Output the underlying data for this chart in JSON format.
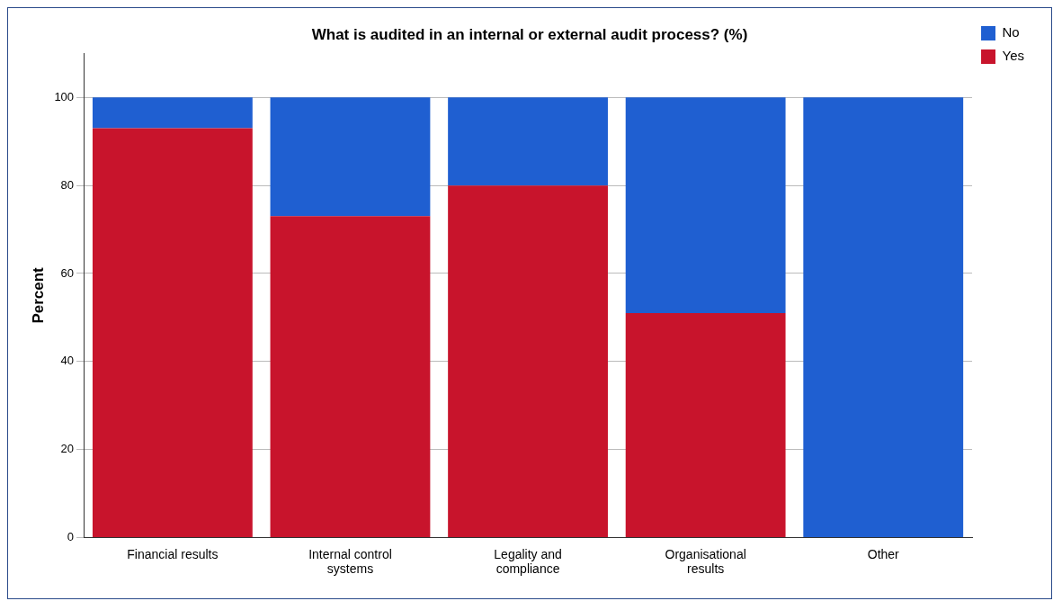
{
  "chart_data": {
    "type": "bar",
    "title": "What is audited in an internal or external audit process? (%)",
    "ylabel": "Percent",
    "categories": [
      "Financial results",
      "Internal control systems",
      "Legality and compliance",
      "Organisational results",
      "Other"
    ],
    "series": [
      {
        "name": "Yes",
        "color": "#c8142c",
        "values": [
          93,
          73,
          80,
          51,
          0
        ]
      },
      {
        "name": "No",
        "color": "#1f5fd1",
        "values": [
          7,
          27,
          20,
          49,
          100
        ]
      }
    ],
    "stacked": true,
    "ylim": [
      0,
      110
    ],
    "yticks": [
      0,
      20,
      40,
      60,
      80,
      100
    ],
    "grid": "y",
    "legend": "top right"
  }
}
